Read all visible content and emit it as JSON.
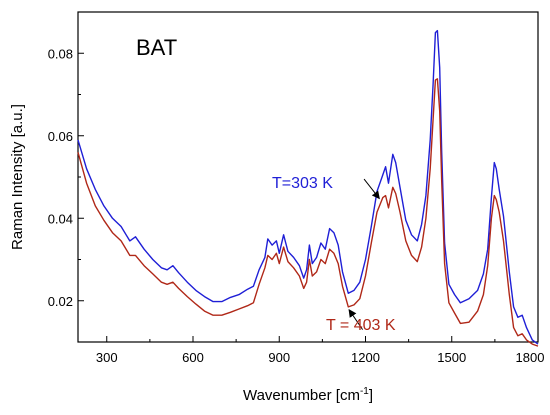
{
  "chart_data": {
    "type": "line",
    "title": "",
    "panel_label": "BAT",
    "xlabel": "Wavenumber [cm",
    "xlabel_sup": "-1",
    "xlabel_end": "]",
    "ylabel": "Raman Intensity [a.u.]",
    "xlim": [
      200,
      1800
    ],
    "ylim": [
      0.01,
      0.09
    ],
    "x_ticks": [
      300,
      600,
      900,
      1200,
      1500,
      1800
    ],
    "y_ticks": [
      0.02,
      0.04,
      0.06,
      0.08
    ],
    "x_tick_labels": [
      "300",
      "600",
      "900",
      "1200",
      "1500",
      "1800"
    ],
    "y_tick_labels": [
      "0.02",
      "0.04",
      "0.06",
      "0.08"
    ],
    "grid": false,
    "series": [
      {
        "name": "T=303 K",
        "color": "#1f1fd6",
        "points": [
          [
            200,
            0.059
          ],
          [
            230,
            0.052
          ],
          [
            260,
            0.047
          ],
          [
            290,
            0.043
          ],
          [
            320,
            0.04
          ],
          [
            350,
            0.038
          ],
          [
            380,
            0.0345
          ],
          [
            400,
            0.0355
          ],
          [
            430,
            0.0325
          ],
          [
            460,
            0.03
          ],
          [
            490,
            0.028
          ],
          [
            510,
            0.0275
          ],
          [
            530,
            0.0285
          ],
          [
            550,
            0.0268
          ],
          [
            580,
            0.0245
          ],
          [
            610,
            0.0225
          ],
          [
            640,
            0.021
          ],
          [
            670,
            0.0198
          ],
          [
            700,
            0.0198
          ],
          [
            730,
            0.0208
          ],
          [
            760,
            0.0215
          ],
          [
            790,
            0.0228
          ],
          [
            810,
            0.0235
          ],
          [
            830,
            0.0275
          ],
          [
            850,
            0.0305
          ],
          [
            860,
            0.035
          ],
          [
            875,
            0.0335
          ],
          [
            890,
            0.0345
          ],
          [
            900,
            0.0315
          ],
          [
            915,
            0.036
          ],
          [
            930,
            0.032
          ],
          [
            950,
            0.0305
          ],
          [
            970,
            0.0285
          ],
          [
            985,
            0.0255
          ],
          [
            995,
            0.0275
          ],
          [
            1005,
            0.0335
          ],
          [
            1015,
            0.029
          ],
          [
            1030,
            0.0305
          ],
          [
            1045,
            0.034
          ],
          [
            1060,
            0.0325
          ],
          [
            1075,
            0.0375
          ],
          [
            1090,
            0.0365
          ],
          [
            1105,
            0.0335
          ],
          [
            1120,
            0.027
          ],
          [
            1140,
            0.0218
          ],
          [
            1160,
            0.0225
          ],
          [
            1180,
            0.0245
          ],
          [
            1200,
            0.03
          ],
          [
            1220,
            0.038
          ],
          [
            1240,
            0.0465
          ],
          [
            1260,
            0.0505
          ],
          [
            1270,
            0.0525
          ],
          [
            1280,
            0.0485
          ],
          [
            1295,
            0.0555
          ],
          [
            1305,
            0.0535
          ],
          [
            1320,
            0.0475
          ],
          [
            1340,
            0.0395
          ],
          [
            1360,
            0.036
          ],
          [
            1380,
            0.0345
          ],
          [
            1395,
            0.0385
          ],
          [
            1410,
            0.0455
          ],
          [
            1425,
            0.059
          ],
          [
            1435,
            0.0725
          ],
          [
            1443,
            0.085
          ],
          [
            1450,
            0.0855
          ],
          [
            1458,
            0.0765
          ],
          [
            1465,
            0.056
          ],
          [
            1475,
            0.034
          ],
          [
            1490,
            0.024
          ],
          [
            1510,
            0.0215
          ],
          [
            1530,
            0.0195
          ],
          [
            1560,
            0.0205
          ],
          [
            1590,
            0.0225
          ],
          [
            1610,
            0.0265
          ],
          [
            1625,
            0.0325
          ],
          [
            1638,
            0.045
          ],
          [
            1648,
            0.0535
          ],
          [
            1655,
            0.052
          ],
          [
            1665,
            0.047
          ],
          [
            1680,
            0.0405
          ],
          [
            1700,
            0.027
          ],
          [
            1715,
            0.0185
          ],
          [
            1730,
            0.016
          ],
          [
            1745,
            0.0165
          ],
          [
            1760,
            0.0135
          ],
          [
            1780,
            0.0105
          ],
          [
            1800,
            0.0095
          ]
        ]
      },
      {
        "name": "T = 403 K",
        "color": "#b02818",
        "points": [
          [
            200,
            0.056
          ],
          [
            230,
            0.0485
          ],
          [
            260,
            0.043
          ],
          [
            290,
            0.0395
          ],
          [
            320,
            0.0365
          ],
          [
            350,
            0.0345
          ],
          [
            380,
            0.031
          ],
          [
            400,
            0.031
          ],
          [
            430,
            0.0285
          ],
          [
            460,
            0.0265
          ],
          [
            490,
            0.0245
          ],
          [
            510,
            0.024
          ],
          [
            530,
            0.0245
          ],
          [
            550,
            0.023
          ],
          [
            580,
            0.021
          ],
          [
            610,
            0.0192
          ],
          [
            640,
            0.0175
          ],
          [
            670,
            0.0165
          ],
          [
            700,
            0.0165
          ],
          [
            730,
            0.0172
          ],
          [
            760,
            0.018
          ],
          [
            790,
            0.0188
          ],
          [
            810,
            0.0195
          ],
          [
            830,
            0.024
          ],
          [
            850,
            0.028
          ],
          [
            860,
            0.031
          ],
          [
            875,
            0.03
          ],
          [
            890,
            0.0315
          ],
          [
            900,
            0.029
          ],
          [
            915,
            0.033
          ],
          [
            930,
            0.0295
          ],
          [
            950,
            0.028
          ],
          [
            970,
            0.026
          ],
          [
            985,
            0.023
          ],
          [
            995,
            0.0245
          ],
          [
            1005,
            0.03
          ],
          [
            1015,
            0.026
          ],
          [
            1030,
            0.027
          ],
          [
            1045,
            0.03
          ],
          [
            1060,
            0.029
          ],
          [
            1075,
            0.0325
          ],
          [
            1090,
            0.0315
          ],
          [
            1105,
            0.029
          ],
          [
            1120,
            0.0235
          ],
          [
            1140,
            0.0185
          ],
          [
            1160,
            0.019
          ],
          [
            1180,
            0.0205
          ],
          [
            1200,
            0.026
          ],
          [
            1220,
            0.034
          ],
          [
            1240,
            0.0415
          ],
          [
            1260,
            0.045
          ],
          [
            1270,
            0.0455
          ],
          [
            1280,
            0.0425
          ],
          [
            1295,
            0.0475
          ],
          [
            1305,
            0.046
          ],
          [
            1320,
            0.0415
          ],
          [
            1340,
            0.0345
          ],
          [
            1360,
            0.031
          ],
          [
            1380,
            0.0295
          ],
          [
            1395,
            0.033
          ],
          [
            1410,
            0.04
          ],
          [
            1425,
            0.052
          ],
          [
            1435,
            0.064
          ],
          [
            1443,
            0.0735
          ],
          [
            1450,
            0.0738
          ],
          [
            1458,
            0.066
          ],
          [
            1465,
            0.049
          ],
          [
            1475,
            0.029
          ],
          [
            1490,
            0.0195
          ],
          [
            1510,
            0.017
          ],
          [
            1530,
            0.0145
          ],
          [
            1560,
            0.0148
          ],
          [
            1590,
            0.0175
          ],
          [
            1610,
            0.0215
          ],
          [
            1625,
            0.0285
          ],
          [
            1638,
            0.04
          ],
          [
            1648,
            0.0455
          ],
          [
            1655,
            0.0445
          ],
          [
            1665,
            0.0415
          ],
          [
            1680,
            0.0345
          ],
          [
            1700,
            0.0215
          ],
          [
            1715,
            0.0135
          ],
          [
            1730,
            0.0115
          ],
          [
            1745,
            0.012
          ],
          [
            1760,
            0.0105
          ],
          [
            1780,
            0.0095
          ],
          [
            1800,
            0.009
          ]
        ]
      }
    ],
    "annotations": [
      {
        "text": "T=303 K",
        "series": 0,
        "arrow_from": [
          1195,
          0.0495
        ],
        "arrow_to": [
          1248,
          0.0448
        ]
      },
      {
        "text": "T = 403 K",
        "series": 1,
        "arrow_from": [
          1190,
          0.013
        ],
        "arrow_to": [
          1143,
          0.0178
        ]
      }
    ]
  }
}
